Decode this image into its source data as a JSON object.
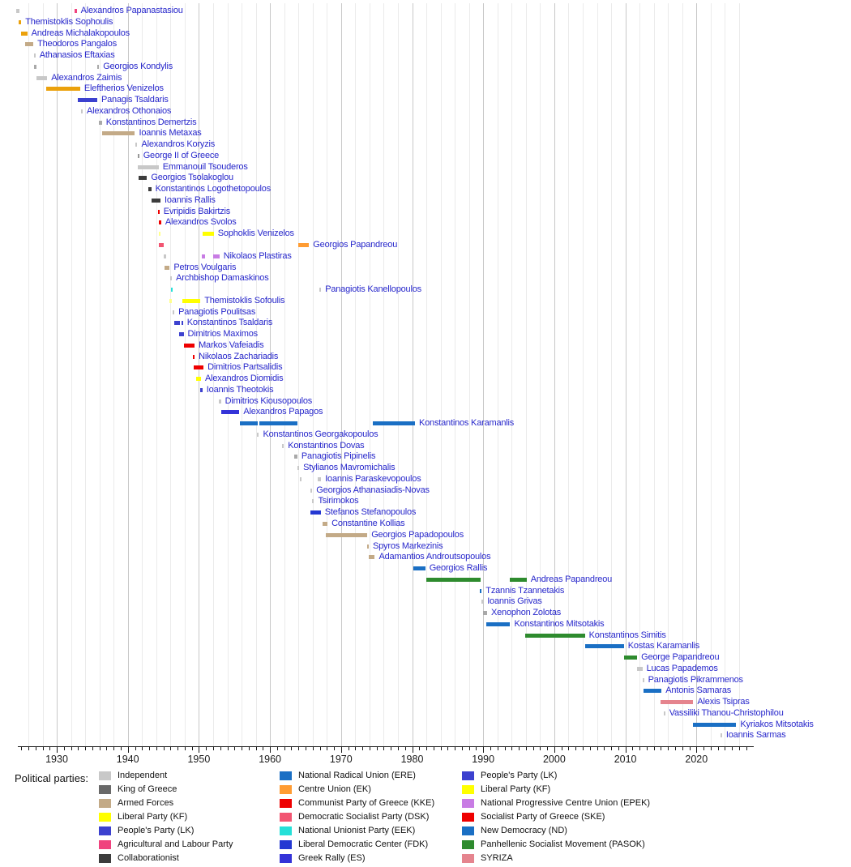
{
  "legend": {
    "title": "Political parties:",
    "columns": [
      [
        {
          "label": "Independent",
          "color": "#c8c8c8"
        },
        {
          "label": "King of Greece",
          "color": "#696969"
        },
        {
          "label": "Armed Forces",
          "color": "#c3aa87"
        },
        {
          "label": "Liberal Party (KF)",
          "color": "#ffff00"
        },
        {
          "label": "People's Party (LK)",
          "color": "#3c41cf"
        },
        {
          "label": "Agricultural and Labour Party",
          "color": "#f0437e"
        },
        {
          "label": "Collaborationist",
          "color": "#3c3c3c"
        }
      ],
      [
        {
          "label": "National Radical Union (ERE)",
          "color": "#1a6fc4"
        },
        {
          "label": "Centre Union (EK)",
          "color": "#ff9c33"
        },
        {
          "label": "Communist Party of Greece (KKE)",
          "color": "#ee0000"
        },
        {
          "label": "Democratic Socialist Party (DSK)",
          "color": "#f25572"
        },
        {
          "label": "National Unionist Party (EEK)",
          "color": "#25e0d8"
        },
        {
          "label": "Liberal Democratic Center (FDK)",
          "color": "#2438d2"
        },
        {
          "label": "Greek Rally (ES)",
          "color": "#3433d8"
        }
      ],
      [
        {
          "label": "People's Party (LK)",
          "color": "#3c41cf"
        },
        {
          "label": "Liberal Party (KF)",
          "color": "#ffff00"
        },
        {
          "label": "National Progressive Centre Union (EPEK)",
          "color": "#c87ce4"
        },
        {
          "label": "Socialist Party of Greece (SKE)",
          "color": "#ee0000"
        },
        {
          "label": "New Democracy (ND)",
          "color": "#1a6fc4"
        },
        {
          "label": "Panhellenic Socialist Movement (PASOK)",
          "color": "#2e8b2e"
        },
        {
          "label": "SYRIZA",
          "color": "#e5848e"
        }
      ]
    ]
  },
  "chart_data": {
    "type": "timeline",
    "subject": "Prime Ministers of Greece by term and political party",
    "label_text_color": "#2727cb",
    "x_axis": {
      "start_year": 1924.4,
      "end_year": 2028,
      "decade_tick_labels": [
        "1930",
        "1940",
        "1950",
        "1960",
        "1970",
        "1980",
        "1990",
        "2000",
        "2010",
        "2020"
      ],
      "gridline_step_years": 2,
      "minor_tick_step_years": 1,
      "grid_on": true
    },
    "parties": {
      "ind": {
        "label": "Independent",
        "color": "#c8c8c8"
      },
      "ind_med": {
        "label": "Independent",
        "color": "#a9a9a9"
      },
      "king": {
        "label": "King of Greece",
        "color": "#999999"
      },
      "armed": {
        "label": "Armed Forces",
        "color": "#c3aa87"
      },
      "kf": {
        "label": "Liberal Party (KF)",
        "color": "#ffff00"
      },
      "kf_light": {
        "label": "Liberal Party (KF)",
        "color": "#ffff8c"
      },
      "lib_ven": {
        "label": "Liberal Party",
        "color": "#eba10c"
      },
      "lk": {
        "label": "People's Party (LK)",
        "color": "#3c41cf"
      },
      "agr": {
        "label": "Agricultural and Labour Party",
        "color": "#f0437e"
      },
      "collab": {
        "label": "Collaborationist",
        "color": "#3c3c3c"
      },
      "ere": {
        "label": "National Radical Union (ERE)",
        "color": "#1a6fc4"
      },
      "ek": {
        "label": "Centre Union (EK)",
        "color": "#ff9c33"
      },
      "kke": {
        "label": "Communist Party of Greece (KKE)",
        "color": "#ee0000"
      },
      "dsk": {
        "label": "Democratic Socialist Party (DSK)",
        "color": "#f25572"
      },
      "eek": {
        "label": "National Unionist Party (EEK)",
        "color": "#25e0d8"
      },
      "fdk": {
        "label": "Liberal Democratic Center (FDK)",
        "color": "#2438d2"
      },
      "es": {
        "label": "Greek Rally (ES)",
        "color": "#3433d8"
      },
      "epek": {
        "label": "National Progressive Centre Union (EPEK)",
        "color": "#c87ce4"
      },
      "ske": {
        "label": "Socialist Party of Greece (SKE)",
        "color": "#ee0000"
      },
      "nd": {
        "label": "New Democracy (ND)",
        "color": "#1a6fc4"
      },
      "pasok": {
        "label": "Panhellenic Socialist Movement (PASOK)",
        "color": "#2e8b2e"
      },
      "syriza": {
        "label": "SYRIZA",
        "color": "#e5848e"
      }
    },
    "terms_format": [
      "party_key",
      "start_year",
      "end_year"
    ],
    "rows": [
      {
        "name": "Alexandros Papanastasiou",
        "terms": [
          [
            "ind",
            1924.3,
            1924.75
          ],
          [
            "agr",
            1932.55,
            1932.8
          ]
        ]
      },
      {
        "name": "Themistoklis Sophoulis",
        "terms": [
          [
            "lib_ven",
            1924.6,
            1925.0
          ]
        ]
      },
      {
        "name": "Andreas Michalakopoulos",
        "terms": [
          [
            "lib_ven",
            1925.0,
            1925.85
          ]
        ]
      },
      {
        "name": "Theodoros Pangalos",
        "terms": [
          [
            "armed",
            1925.5,
            1926.7
          ]
        ]
      },
      {
        "name": "Athanasios Eftaxias",
        "terms": [
          [
            "ind",
            1926.75,
            1927.0
          ]
        ]
      },
      {
        "name": "Georgios Kondylis",
        "terms": [
          [
            "ind_med",
            1926.85,
            1927.1
          ],
          [
            "ind_med",
            1935.7,
            1935.95
          ]
        ]
      },
      {
        "name": "Alexandros Zaimis",
        "terms": [
          [
            "ind",
            1927.1,
            1928.65
          ]
        ]
      },
      {
        "name": "Eleftherios Venizelos",
        "terms": [
          [
            "lib_ven",
            1928.5,
            1933.3
          ]
        ]
      },
      {
        "name": "Panagis Tsaldaris",
        "terms": [
          [
            "lk",
            1933.0,
            1935.7
          ]
        ]
      },
      {
        "name": "Alexandros Othonaios",
        "terms": [
          [
            "ind",
            1933.4,
            1933.65
          ]
        ]
      },
      {
        "name": "Konstantinos Demertzis",
        "terms": [
          [
            "ind_med",
            1935.95,
            1936.35
          ]
        ]
      },
      {
        "name": "Ioannis Metaxas",
        "terms": [
          [
            "armed",
            1936.35,
            1941.0
          ]
        ]
      },
      {
        "name": "Alexandros Koryzis",
        "terms": [
          [
            "ind",
            1941.05,
            1941.35
          ]
        ]
      },
      {
        "name": "George II of Greece",
        "terms": [
          [
            "king",
            1941.35,
            1941.6
          ]
        ]
      },
      {
        "name": "Emmanouil Tsouderos",
        "terms": [
          [
            "ind",
            1941.4,
            1944.35
          ]
        ]
      },
      {
        "name": "Georgios Tsolakoglou",
        "terms": [
          [
            "collab",
            1941.5,
            1942.7
          ]
        ]
      },
      {
        "name": "Konstantinos Logothetopoulos",
        "terms": [
          [
            "collab",
            1942.85,
            1943.3
          ]
        ]
      },
      {
        "name": "Ioannis Rallis",
        "terms": [
          [
            "collab",
            1943.3,
            1944.6
          ]
        ]
      },
      {
        "name": "Evripidis Bakirtzis",
        "terms": [
          [
            "ske",
            1944.2,
            1944.45
          ]
        ]
      },
      {
        "name": "Alexandros Svolos",
        "terms": [
          [
            "ske",
            1944.4,
            1944.7
          ]
        ]
      },
      {
        "name": "Sophoklis Venizelos",
        "terms": [
          [
            "kf_light",
            1944.4,
            1944.65
          ],
          [
            "kf",
            1950.5,
            1952.1
          ]
        ]
      },
      {
        "name": "Georgios Papandreou",
        "terms": [
          [
            "dsk",
            1944.4,
            1945.1
          ],
          [
            "ek",
            1963.95,
            1965.5
          ]
        ]
      },
      {
        "name": "Nikolaos Plastiras",
        "terms": [
          [
            "ind",
            1945.1,
            1945.35
          ],
          [
            "epek",
            1950.35,
            1950.9
          ],
          [
            "epek",
            1951.95,
            1952.9
          ]
        ]
      },
      {
        "name": "Petros Voulgaris",
        "terms": [
          [
            "armed",
            1945.2,
            1945.9
          ]
        ]
      },
      {
        "name": "Archbishop Damaskinos",
        "terms": [
          [
            "ind",
            1945.95,
            1946.2
          ]
        ]
      },
      {
        "name": "Panagiotis Kanellopoulos",
        "terms": [
          [
            "eek",
            1946.05,
            1946.3
          ],
          [
            "ind",
            1966.95,
            1967.2
          ]
        ]
      },
      {
        "name": "Themistoklis Sofoulis",
        "terms": [
          [
            "kf_light",
            1945.9,
            1946.25
          ],
          [
            "kf",
            1947.7,
            1950.2
          ]
        ]
      },
      {
        "name": "Panagiotis Poulitsas",
        "terms": [
          [
            "ind",
            1946.3,
            1946.55
          ]
        ]
      },
      {
        "name": "Konstantinos Tsaldaris",
        "terms": [
          [
            "lk",
            1946.5,
            1947.3
          ],
          [
            "lk",
            1947.55,
            1947.75
          ]
        ]
      },
      {
        "name": "Dimitrios Maximos",
        "terms": [
          [
            "lk",
            1947.25,
            1947.85
          ]
        ]
      },
      {
        "name": "Markos Vafeiadis",
        "terms": [
          [
            "kke",
            1947.95,
            1949.4
          ]
        ]
      },
      {
        "name": "Nikolaos Zachariadis",
        "terms": [
          [
            "kke",
            1949.15,
            1949.4
          ]
        ]
      },
      {
        "name": "Dimitrios Partsalidis",
        "terms": [
          [
            "kke",
            1949.3,
            1950.65
          ]
        ]
      },
      {
        "name": "Alexandros Diomidis",
        "terms": [
          [
            "kf",
            1949.6,
            1950.3
          ]
        ]
      },
      {
        "name": "Ioannis Theotokis",
        "terms": [
          [
            "lk",
            1950.2,
            1950.5
          ]
        ]
      },
      {
        "name": "Dimitrios Kiousopoulos",
        "terms": [
          [
            "ind",
            1952.85,
            1953.1
          ]
        ]
      },
      {
        "name": "Alexandros Papagos",
        "terms": [
          [
            "es",
            1953.15,
            1955.7
          ]
        ]
      },
      {
        "name": "Konstantinos Karamanlis",
        "terms": [
          [
            "ere",
            1955.75,
            1958.3
          ],
          [
            "ere",
            1958.5,
            1963.9
          ],
          [
            "nd",
            1974.5,
            1980.4
          ]
        ]
      },
      {
        "name": "Konstantinos Georgakopoulos",
        "terms": [
          [
            "ind",
            1958.2,
            1958.45
          ]
        ]
      },
      {
        "name": "Konstantinos Dovas",
        "terms": [
          [
            "ind",
            1961.7,
            1961.95
          ]
        ]
      },
      {
        "name": "Panagiotis Pipinelis",
        "terms": [
          [
            "ind_med",
            1963.4,
            1963.85
          ]
        ]
      },
      {
        "name": "Stylianos Mavromichalis",
        "terms": [
          [
            "ind",
            1963.85,
            1964.1
          ]
        ]
      },
      {
        "name": "Ioannis Paraskevopoulos",
        "terms": [
          [
            "ind",
            1964.15,
            1964.4
          ],
          [
            "ind",
            1966.7,
            1967.2
          ]
        ]
      },
      {
        "name": "Georgios Athanasiadis-Novas",
        "terms": [
          [
            "ind",
            1965.7,
            1965.95
          ]
        ]
      },
      {
        "name": "Tsirimokos",
        "terms": [
          [
            "ind",
            1965.95,
            1966.2
          ]
        ]
      },
      {
        "name": "Stefanos Stefanopoulos",
        "terms": [
          [
            "fdk",
            1965.7,
            1967.15
          ]
        ]
      },
      {
        "name": "Constantine Kollias",
        "terms": [
          [
            "armed",
            1967.4,
            1968.1
          ]
        ]
      },
      {
        "name": "Georgios Papadopoulos",
        "terms": [
          [
            "armed",
            1967.85,
            1973.7
          ]
        ]
      },
      {
        "name": "Spyros Markezinis",
        "terms": [
          [
            "armed",
            1973.65,
            1973.9
          ]
        ]
      },
      {
        "name": "Adamantios Androutsopoulos",
        "terms": [
          [
            "armed",
            1973.95,
            1974.75
          ]
        ]
      },
      {
        "name": "Georgios Rallis",
        "terms": [
          [
            "nd",
            1980.2,
            1981.85
          ]
        ]
      },
      {
        "name": "Andreas Papandreou",
        "terms": [
          [
            "pasok",
            1981.95,
            1989.6
          ],
          [
            "pasok",
            1993.7,
            1996.1
          ]
        ]
      },
      {
        "name": "Tzannis Tzannetakis",
        "terms": [
          [
            "nd",
            1989.5,
            1989.78
          ]
        ]
      },
      {
        "name": "Ioannis Grivas",
        "terms": [
          [
            "ind",
            1989.75,
            1990.0
          ]
        ]
      },
      {
        "name": "Xenophon Zolotas",
        "terms": [
          [
            "ind_med",
            1989.95,
            1990.55
          ]
        ]
      },
      {
        "name": "Konstantinos Mitsotakis",
        "terms": [
          [
            "nd",
            1990.4,
            1993.8
          ]
        ]
      },
      {
        "name": "Konstantinos Simitis",
        "terms": [
          [
            "pasok",
            1995.9,
            2004.3
          ]
        ]
      },
      {
        "name": "Kostas Karamanlis",
        "terms": [
          [
            "nd",
            2004.3,
            2009.8
          ]
        ]
      },
      {
        "name": "George Papandreou",
        "terms": [
          [
            "pasok",
            2009.8,
            2011.65
          ]
        ]
      },
      {
        "name": "Lucas Papademos",
        "terms": [
          [
            "ind",
            2011.6,
            2012.4
          ]
        ]
      },
      {
        "name": "Panagiotis Pikrammenos",
        "terms": [
          [
            "ind",
            2012.4,
            2012.62
          ]
        ]
      },
      {
        "name": "Antonis Samaras",
        "terms": [
          [
            "nd",
            2012.5,
            2015.1
          ]
        ]
      },
      {
        "name": "Alexis Tsipras",
        "terms": [
          [
            "syriza",
            2015.0,
            2019.55
          ]
        ]
      },
      {
        "name": "Vassiliki Thanou-Christophilou",
        "terms": [
          [
            "ind",
            2015.35,
            2015.6
          ]
        ]
      },
      {
        "name": "Kyriakos Mitsotakis",
        "terms": [
          [
            "nd",
            2019.55,
            2025.6
          ]
        ]
      },
      {
        "name": "Ioannis Sarmas",
        "terms": [
          [
            "ind",
            2023.35,
            2023.6
          ]
        ]
      }
    ]
  }
}
